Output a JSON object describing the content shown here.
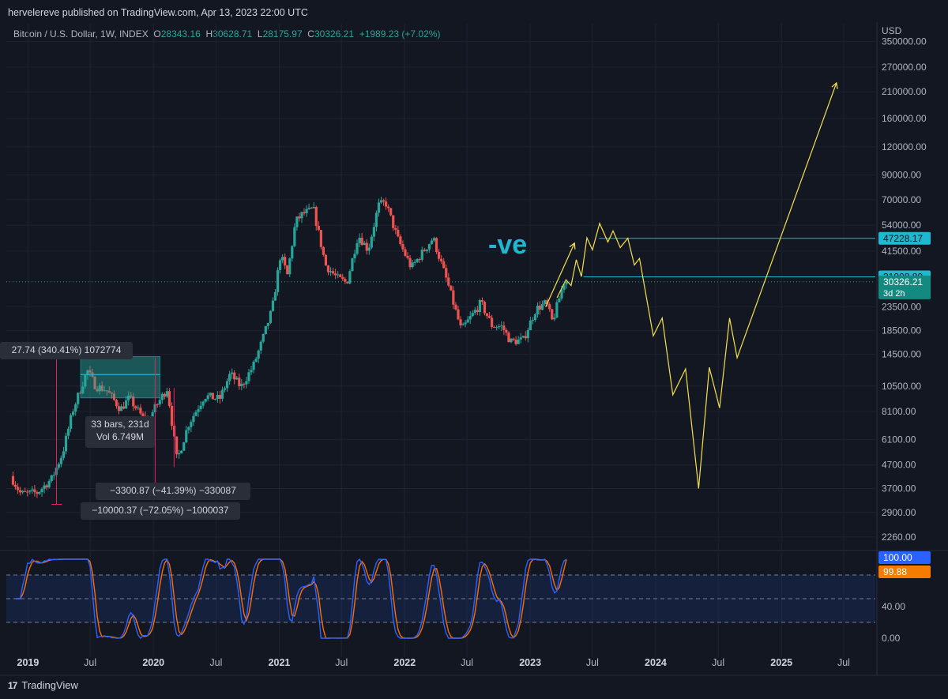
{
  "header": {
    "publisher": "hervelereve published on TradingView.com, Apr 13, 2023 22:00 UTC"
  },
  "series_info": {
    "symbol": "Bitcoin / U.S. Dollar, 1W, INDEX",
    "o_label": "O",
    "o": "28343.16",
    "h_label": "H",
    "h": "30628.71",
    "l_label": "L",
    "l": "28175.97",
    "c_label": "C",
    "c": "30326.21",
    "change": "+1989.23 (+7.02%)"
  },
  "footer": {
    "brand": "TradingView",
    "logo": "17"
  },
  "colors": {
    "background": "#131722",
    "up": "#26a69a",
    "down": "#ef5350",
    "projection": "#f5e14a",
    "level": "#1fb8cf",
    "annotation": "#1fb8d0",
    "stoch_k": "#2962ff",
    "stoch_d": "#ff6d00",
    "grid": "#1e2230"
  },
  "chart_data": {
    "type": "candlestick",
    "title": "Bitcoin / U.S. Dollar, 1W, INDEX",
    "currency": "USD",
    "scale": "log",
    "ylim": [
      2000,
      420000
    ],
    "x_ticks": [
      "2019",
      "Jul",
      "2020",
      "Jul",
      "2021",
      "Jul",
      "2022",
      "Jul",
      "2023",
      "Jul",
      "2024",
      "Jul",
      "2025",
      "Jul"
    ],
    "y_ticks": [
      "350000.00",
      "270000.00",
      "210000.00",
      "160000.00",
      "120000.00",
      "90000.00",
      "70000.00",
      "54000.00",
      "41500.00",
      "23500.00",
      "18500.00",
      "14500.00",
      "10500.00",
      "8100.00",
      "6100.00",
      "4700.00",
      "3700.00",
      "2900.00",
      "2260.00"
    ],
    "price_path": [
      [
        "2018-11-15",
        4200
      ],
      [
        "2018-12-15",
        3500
      ],
      [
        "2019-02-01",
        3550
      ],
      [
        "2019-03-15",
        4100
      ],
      [
        "2019-04-15",
        5300
      ],
      [
        "2019-05-15",
        8200
      ],
      [
        "2019-06-26",
        12300
      ],
      [
        "2019-07-20",
        10500
      ],
      [
        "2019-08-20",
        10100
      ],
      [
        "2019-10-01",
        8300
      ],
      [
        "2019-10-26",
        9300
      ],
      [
        "2019-12-15",
        7200
      ],
      [
        "2020-01-15",
        8700
      ],
      [
        "2020-02-14",
        10300
      ],
      [
        "2020-03-13",
        4900
      ],
      [
        "2020-04-15",
        7100
      ],
      [
        "2020-06-01",
        9500
      ],
      [
        "2020-07-15",
        9200
      ],
      [
        "2020-08-15",
        11900
      ],
      [
        "2020-09-15",
        10400
      ],
      [
        "2020-10-21",
        12900
      ],
      [
        "2020-11-15",
        16500
      ],
      [
        "2020-12-15",
        23000
      ],
      [
        "2021-01-08",
        40000
      ],
      [
        "2021-01-28",
        32500
      ],
      [
        "2021-02-21",
        56000
      ],
      [
        "2021-03-13",
        60500
      ],
      [
        "2021-04-14",
        63500
      ],
      [
        "2021-05-19",
        36000
      ],
      [
        "2021-06-22",
        31500
      ],
      [
        "2021-07-20",
        30000
      ],
      [
        "2021-08-22",
        49000
      ],
      [
        "2021-09-20",
        42000
      ],
      [
        "2021-10-20",
        66000
      ],
      [
        "2021-11-10",
        68000
      ],
      [
        "2021-12-15",
        47000
      ],
      [
        "2022-01-24",
        35000
      ],
      [
        "2022-03-28",
        47500
      ],
      [
        "2022-05-12",
        29000
      ],
      [
        "2022-06-18",
        18500
      ],
      [
        "2022-08-14",
        24500
      ],
      [
        "2022-09-15",
        19500
      ],
      [
        "2022-10-15",
        19200
      ],
      [
        "2022-11-09",
        16500
      ],
      [
        "2022-12-15",
        16800
      ],
      [
        "2023-01-21",
        23000
      ],
      [
        "2023-02-20",
        24500
      ],
      [
        "2023-03-10",
        20200
      ],
      [
        "2023-04-13",
        30326
      ]
    ],
    "projection": [
      [
        "2023-02-15",
        23500
      ],
      [
        "2023-05-10",
        45000
      ],
      [
        "2023-05-13",
        44000
      ],
      [
        "2023-05-20",
        43000
      ],
      [
        "2023-03-20",
        25800
      ],
      [
        "2023-04-15",
        31000
      ],
      [
        "2023-04-30",
        29200
      ],
      [
        "2023-05-15",
        38000
      ],
      [
        "2023-05-30",
        32000
      ],
      [
        "2023-06-15",
        47500
      ],
      [
        "2023-07-01",
        42000
      ],
      [
        "2023-07-22",
        55000
      ],
      [
        "2023-08-15",
        45500
      ],
      [
        "2023-08-30",
        51000
      ],
      [
        "2023-09-20",
        43000
      ],
      [
        "2023-10-12",
        47300
      ],
      [
        "2023-10-31",
        36000
      ],
      [
        "2023-11-15",
        38500
      ],
      [
        "2023-12-25",
        17500
      ],
      [
        "2024-01-20",
        21000
      ],
      [
        "2024-02-20",
        9600
      ],
      [
        "2024-03-28",
        12500
      ],
      [
        "2024-05-05",
        3700
      ],
      [
        "2024-06-05",
        12700
      ],
      [
        "2024-07-05",
        8400
      ],
      [
        "2024-08-03",
        21000
      ],
      [
        "2024-08-25",
        14000
      ],
      [
        "2025-06-10",
        230000
      ]
    ],
    "levels": [
      {
        "value": 47228.17,
        "label": "47228.17",
        "from": "2023-07-20"
      },
      {
        "value": 31908.8,
        "label": "31908.80",
        "from": "2023-06-05"
      }
    ],
    "current": {
      "value": 30326.21,
      "label": "30326.21",
      "countdown": "3d 2h"
    },
    "annotation": "-ve",
    "measure_tools": [
      {
        "label": "27.74 (340.41%) 1072774"
      },
      {
        "label": "33 bars, 231d",
        "sub": "Vol 6.749M"
      },
      {
        "label": "−3300.87 (−41.39%) −330087"
      },
      {
        "label": "−10000.37 (−72.05%) −1000037"
      }
    ],
    "oscillator": {
      "type": "stochastic_rsi",
      "ylim": [
        0,
        100
      ],
      "levels": [
        80,
        50,
        20
      ],
      "y_ticks": [
        "40.00",
        "0.00"
      ],
      "k_label": "100.00",
      "d_label": "99.88"
    }
  }
}
